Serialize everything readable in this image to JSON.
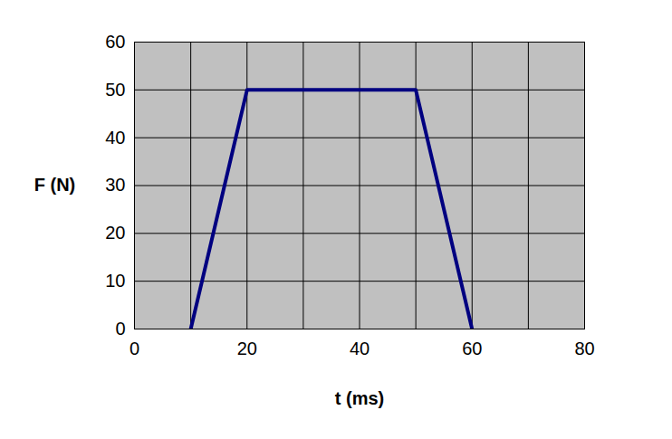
{
  "chart_data": {
    "type": "line",
    "x_label": "t (ms)",
    "y_label": "F (N)",
    "x": [
      10,
      20,
      50,
      60
    ],
    "values": [
      0,
      50,
      50,
      0
    ],
    "color": "#000080",
    "xlim": [
      0,
      80
    ],
    "ylim": [
      0,
      60
    ],
    "xticks": [
      0,
      20,
      40,
      60,
      80
    ],
    "yticks": [
      0,
      10,
      20,
      30,
      40,
      50,
      60
    ],
    "grid": true
  }
}
